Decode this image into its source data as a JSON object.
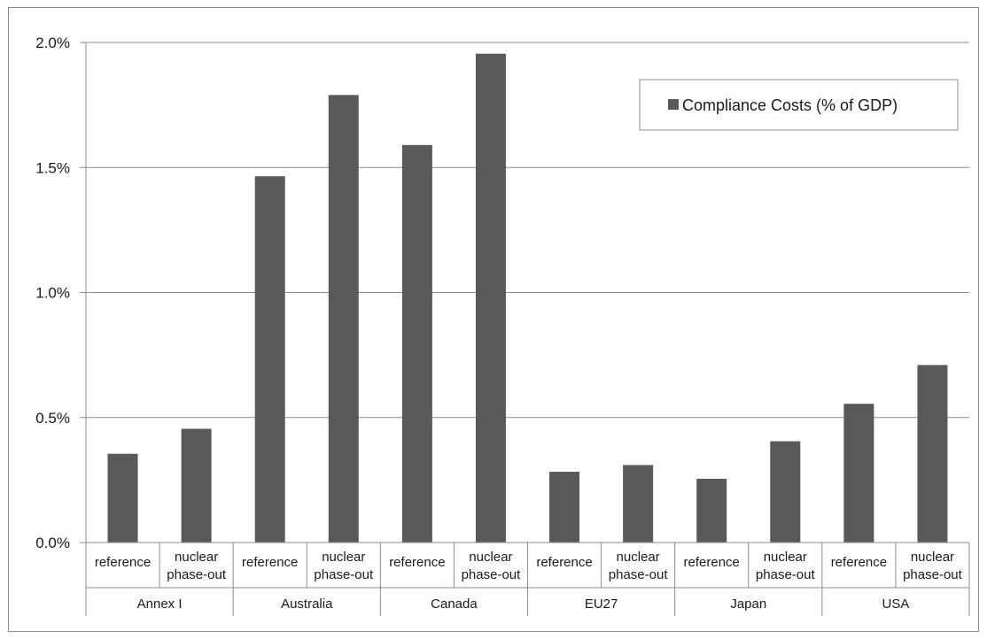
{
  "chart_data": {
    "type": "bar",
    "title": "",
    "xlabel": "",
    "ylabel": "",
    "ylim": [
      0,
      0.02
    ],
    "yticks": [
      "0.0%",
      "0.5%",
      "1.0%",
      "1.5%",
      "2.0%"
    ],
    "ytick_values": [
      0,
      0.005,
      0.01,
      0.015,
      0.02
    ],
    "grid": "horizontal",
    "legend_position": "top-right",
    "groups": [
      "Annex I",
      "Australia",
      "Canada",
      "EU27",
      "Japan",
      "USA"
    ],
    "categories": [
      "reference",
      "nuclear phase-out",
      "reference",
      "nuclear phase-out",
      "reference",
      "nuclear phase-out",
      "reference",
      "nuclear phase-out",
      "reference",
      "nuclear phase-out",
      "reference",
      "nuclear phase-out"
    ],
    "series": [
      {
        "name": "Compliance Costs (% of GDP)",
        "color": "#595959",
        "values": [
          0.00355,
          0.00455,
          0.01465,
          0.0179,
          0.0159,
          0.01955,
          0.00283,
          0.0031,
          0.00255,
          0.00405,
          0.00555,
          0.0071
        ]
      }
    ]
  }
}
